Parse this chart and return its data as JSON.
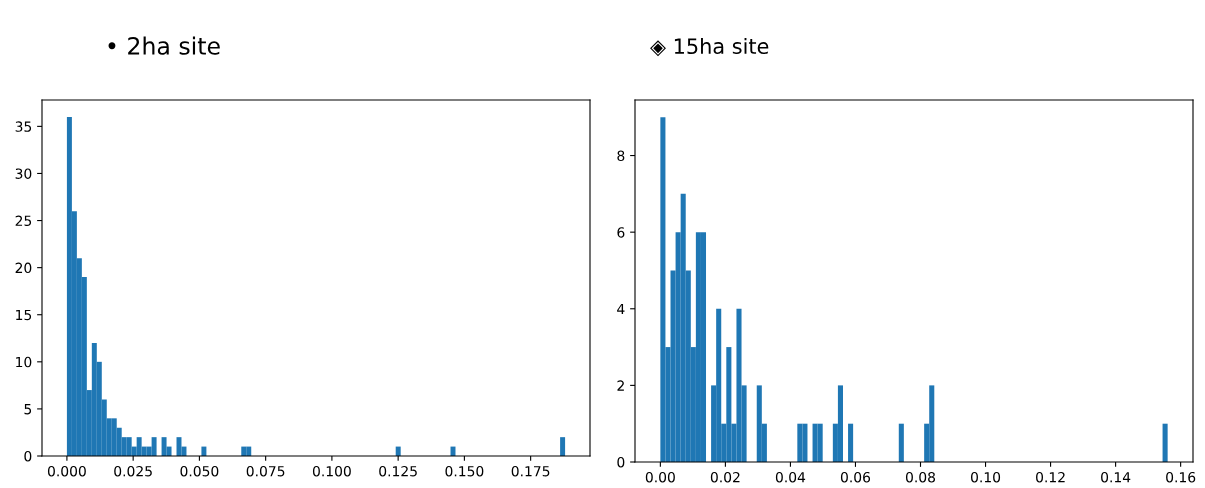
{
  "chart_data": [
    {
      "type": "histogram",
      "title": "• 2ha site",
      "color": "#1f77b4",
      "bins": [
        0,
        0.00188,
        0.00376,
        0.00564,
        0.00752,
        0.0094,
        0.01128,
        0.01316,
        0.01504,
        0.01692,
        0.0188,
        0.02068,
        0.02256,
        0.02444,
        0.02632,
        0.0282,
        0.03008,
        0.03196,
        0.03384,
        0.03572,
        0.0376,
        0.03948,
        0.04136,
        0.04324,
        0.04512,
        0.05076,
        0.05264,
        0.0658,
        0.06768,
        0.06956,
        0.12408,
        0.12596,
        0.14476,
        0.14664,
        0.18612,
        0.188
      ],
      "values": [
        36,
        26,
        21,
        19,
        7,
        12,
        10,
        6,
        4,
        4,
        3,
        2,
        2,
        1,
        2,
        1,
        1,
        2,
        0,
        2,
        1,
        0,
        2,
        1,
        0,
        1,
        0,
        1,
        1,
        0,
        1,
        0,
        1,
        0,
        2
      ],
      "xlim": [
        -0.0094,
        0.1974
      ],
      "xticks": [
        {
          "value": 0,
          "label": "0.000"
        },
        {
          "value": 0.025,
          "label": "0.025"
        },
        {
          "value": 0.05,
          "label": "0.050"
        },
        {
          "value": 0.075,
          "label": "0.075"
        },
        {
          "value": 0.1,
          "label": "0.100"
        },
        {
          "value": 0.125,
          "label": "0.125"
        },
        {
          "value": 0.15,
          "label": "0.150"
        },
        {
          "value": 0.175,
          "label": "0.175"
        }
      ],
      "ylim": [
        0,
        37.8
      ],
      "yticks": [
        0,
        5,
        10,
        15,
        20,
        25,
        30,
        35
      ],
      "grid": false
    },
    {
      "type": "histogram",
      "title": "◈ 15ha site",
      "color": "#1f77b4",
      "bins": [
        0,
        0.00156,
        0.00312,
        0.00468,
        0.00624,
        0.0078,
        0.00936,
        0.01092,
        0.01248,
        0.01404,
        0.0156,
        0.01716,
        0.01872,
        0.02028,
        0.02184,
        0.0234,
        0.02496,
        0.02652,
        0.02964,
        0.0312,
        0.03276,
        0.04212,
        0.04368,
        0.04524,
        0.0468,
        0.04836,
        0.04992,
        0.05304,
        0.0546,
        0.05616,
        0.05772,
        0.05928,
        0.07332,
        0.07488,
        0.08112,
        0.08268,
        0.08424,
        0.15444,
        0.156
      ],
      "values": [
        9,
        3,
        5,
        6,
        7,
        5,
        3,
        6,
        6,
        0,
        2,
        4,
        1,
        3,
        1,
        4,
        2,
        0,
        2,
        1,
        0,
        1,
        1,
        0,
        1,
        1,
        0,
        1,
        2,
        0,
        1,
        0,
        1,
        0,
        1,
        2,
        0,
        1
      ],
      "xlim": [
        -0.0078,
        0.1638
      ],
      "xticks": [
        {
          "value": 0,
          "label": "0.00"
        },
        {
          "value": 0.02,
          "label": "0.02"
        },
        {
          "value": 0.04,
          "label": "0.04"
        },
        {
          "value": 0.06,
          "label": "0.06"
        },
        {
          "value": 0.08,
          "label": "0.08"
        },
        {
          "value": 0.1,
          "label": "0.10"
        },
        {
          "value": 0.12,
          "label": "0.12"
        },
        {
          "value": 0.14,
          "label": "0.14"
        },
        {
          "value": 0.16,
          "label": "0.16"
        }
      ],
      "ylim": [
        0,
        9.45
      ],
      "yticks": [
        0,
        2,
        4,
        6,
        8
      ],
      "grid": false
    }
  ]
}
